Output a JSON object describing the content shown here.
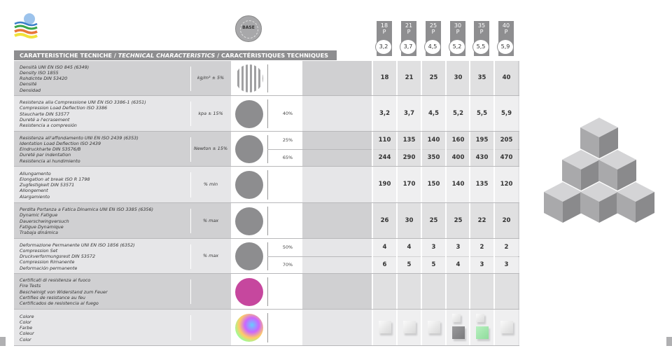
{
  "header": {
    "title_it": "CARATTERISTICHE TECNICHE / ",
    "title_en": "TECHNICAL CHARACTERISTICS",
    "title_fr": " / CARACTÉRISTIQUES TECHNIQUES",
    "badge_label": "BASE"
  },
  "grades": [
    {
      "density": "18",
      "suffix": "P",
      "hardness": "3,2"
    },
    {
      "density": "21",
      "suffix": "P",
      "hardness": "3,7"
    },
    {
      "density": "25",
      "suffix": "P",
      "hardness": "4,5"
    },
    {
      "density": "30",
      "suffix": "P",
      "hardness": "5,2"
    },
    {
      "density": "35",
      "suffix": "P",
      "hardness": "5,5"
    },
    {
      "density": "40",
      "suffix": "P",
      "hardness": "5,9"
    }
  ],
  "rows": [
    {
      "lines": [
        "Densità UNI EN ISO 845 (6349)",
        "Density ISO 1855",
        "Rohdichte DIN 53420",
        "Densité",
        "Densidad"
      ],
      "unit": "kg/m³ ± 5%",
      "icon": "sphere-stripes-icon",
      "sub": [],
      "values": [
        [
          "18",
          "21",
          "25",
          "30",
          "35",
          "40"
        ]
      ]
    },
    {
      "lines": [
        "Resistenza alla Compressione UNI EN ISO 3386-1 (6351)",
        "Compression Load Deflection ISO 3386",
        "Staucharte DIN 53577",
        "Dureté a l'ecrasement",
        "Resistencia a compresión"
      ],
      "unit": "kpa ± 15%",
      "icon": "compression-cube-icon",
      "sub": [
        "40%"
      ],
      "values": [
        [
          "3,2",
          "3,7",
          "4,5",
          "5,2",
          "5,5",
          "5,9"
        ]
      ]
    },
    {
      "lines": [
        "Resistenza all'affondamento UNI EN ISO 2439 (6353)",
        "Identation Load Deflection ISO 2439",
        "Eindruckharte DIN 53576/B",
        "Dureté par indentation",
        "Resistencia al hundimiento"
      ],
      "unit": "Newton ± 15%",
      "icon": "indentation-icon",
      "sub": [
        "25%",
        "65%"
      ],
      "values": [
        [
          "110",
          "135",
          "140",
          "160",
          "195",
          "205"
        ],
        [
          "244",
          "290",
          "350",
          "400",
          "430",
          "470"
        ]
      ]
    },
    {
      "lines": [
        "Allungamento",
        "Elongation at break ISO R 1798",
        "Zugfestigkeit DIN 53571",
        "Allongement",
        "Alargamiento"
      ],
      "unit": "% min",
      "icon": "elongation-icon",
      "sub": [],
      "values": [
        [
          "190",
          "170",
          "150",
          "140",
          "135",
          "120"
        ]
      ]
    },
    {
      "lines": [
        "Perdita Portanza a Fatica Dinamica UNI EN ISO 3385 (6356)",
        "Dynamic Fatigue",
        "Dauerschwingversuch",
        "Fatigue Dynamique",
        "Trabaja dinámica"
      ],
      "unit": "% max",
      "icon": "dynamic-fatigue-icon",
      "sub": [],
      "values": [
        [
          "26",
          "30",
          "25",
          "25",
          "22",
          "20"
        ]
      ]
    },
    {
      "lines": [
        "Deformazione Permanente UNI EN ISO 1856 (6352)",
        "Compression Set",
        "Druckverformungsrest DIN 53572",
        "Compression Rimanente",
        "Deformación permanente"
      ],
      "unit": "% max",
      "icon": "compression-set-icon",
      "sub": [
        "50%",
        "70%"
      ],
      "values": [
        [
          "4",
          "4",
          "3",
          "3",
          "2",
          "2"
        ],
        [
          "6",
          "5",
          "5",
          "4",
          "3",
          "3"
        ]
      ]
    },
    {
      "lines": [
        "Certificati di resistenza al fuoco",
        "Fire Tests",
        "Bescheinigt von Widerstand zum Feuer",
        "Certifies de resistance au feu",
        "Certificados de resistencia al fuego"
      ],
      "unit": "",
      "icon": "fire-extinguisher-icon",
      "sub": [],
      "values": []
    },
    {
      "lines": [
        "Colore",
        "Color",
        "Farbe",
        "Coleur",
        "Color"
      ],
      "unit": "",
      "icon": "color-sphere-icon",
      "sub": [],
      "values": []
    }
  ],
  "colors_swatches": [
    [
      "white"
    ],
    [
      "white"
    ],
    [
      "white"
    ],
    [
      "white",
      "grey"
    ],
    [
      "white",
      "green"
    ],
    [
      "white"
    ]
  ],
  "colors": {
    "header": "#8e8e90",
    "row_light": "#e6e6e8",
    "row_dark": "#d0d0d2",
    "fire_icon": "#c6479e",
    "green_swatch": "#8fdc9c",
    "grey_swatch": "#7a7a7c"
  }
}
